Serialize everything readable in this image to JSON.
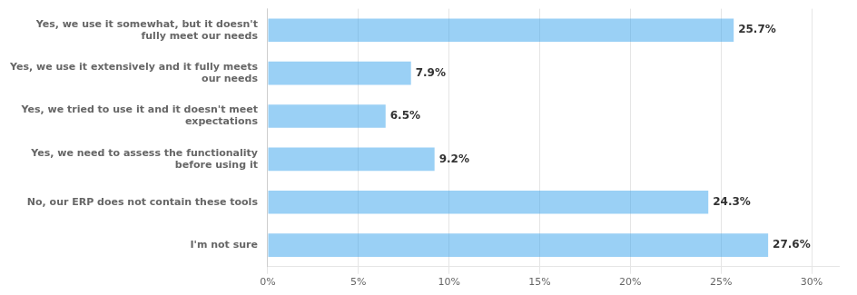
{
  "chart_data": {
    "type": "bar",
    "orientation": "horizontal",
    "categories": [
      "Yes, we use it somewhat, but it doesn't\nfully meet our needs",
      "Yes, we use it extensively and it fully meets\nour needs",
      "Yes, we tried to use it and it doesn't meet\nexpectations",
      "Yes, we need to assess the functionality\nbefore using it",
      "No, our ERP does not contain these tools",
      "I'm not sure"
    ],
    "values": [
      25.7,
      7.9,
      6.5,
      9.2,
      24.3,
      27.6
    ],
    "value_labels": [
      "25.7%",
      "7.9%",
      "6.5%",
      "9.2%",
      "24.3%",
      "27.6%"
    ],
    "data_labels": true,
    "xlim": [
      0,
      31.5
    ],
    "xticks": [
      {
        "value": 0,
        "label": "0%"
      },
      {
        "value": 5,
        "label": "5%"
      },
      {
        "value": 10,
        "label": "10%"
      },
      {
        "value": 15,
        "label": "15%"
      },
      {
        "value": 20,
        "label": "20%"
      },
      {
        "value": 25,
        "label": "25%"
      },
      {
        "value": 30,
        "label": "30%"
      }
    ],
    "grid": true
  }
}
